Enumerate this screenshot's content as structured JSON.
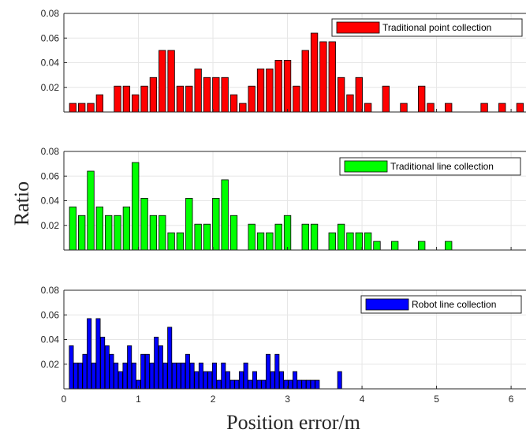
{
  "chart_data": {
    "type": "bar",
    "xlabel": "Position error/m",
    "ylabel": "Ratio",
    "xlim": [
      0,
      6.2
    ],
    "ylim": [
      0,
      0.08
    ],
    "xticks": [
      "0",
      "1",
      "2",
      "3",
      "4",
      "5",
      "6"
    ],
    "yticks": [
      "0.02",
      "0.04",
      "0.06",
      "0.08"
    ],
    "bin_width": 0.1,
    "grid": true,
    "legend_position": "top-right",
    "panels": [
      {
        "name": "Traditional point collection",
        "color": "#ff0000",
        "x": [
          0.12,
          0.24,
          0.36,
          0.48,
          0.72,
          0.84,
          0.96,
          1.08,
          1.2,
          1.32,
          1.44,
          1.56,
          1.68,
          1.8,
          1.92,
          2.04,
          2.16,
          2.28,
          2.4,
          2.52,
          2.64,
          2.76,
          2.88,
          3.0,
          3.12,
          3.24,
          3.36,
          3.48,
          3.6,
          3.72,
          3.84,
          3.96,
          4.08,
          4.32,
          4.56,
          4.8,
          4.92,
          5.16,
          5.64,
          5.88,
          6.12
        ],
        "values": [
          0.007,
          0.007,
          0.007,
          0.014,
          0.021,
          0.021,
          0.014,
          0.021,
          0.028,
          0.05,
          0.05,
          0.021,
          0.021,
          0.035,
          0.028,
          0.028,
          0.028,
          0.014,
          0.007,
          0.021,
          0.035,
          0.035,
          0.042,
          0.042,
          0.021,
          0.05,
          0.064,
          0.057,
          0.057,
          0.028,
          0.014,
          0.028,
          0.007,
          0.021,
          0.007,
          0.021,
          0.007,
          0.007,
          0.007,
          0.007,
          0.007
        ]
      },
      {
        "name": "Traditional line collection",
        "color": "#00ff00",
        "x": [
          0.12,
          0.24,
          0.36,
          0.48,
          0.6,
          0.72,
          0.84,
          0.96,
          1.08,
          1.2,
          1.32,
          1.44,
          1.56,
          1.68,
          1.8,
          1.92,
          2.04,
          2.16,
          2.28,
          2.52,
          2.64,
          2.76,
          2.88,
          3.0,
          3.24,
          3.36,
          3.6,
          3.72,
          3.84,
          3.96,
          4.08,
          4.2,
          4.44,
          4.8,
          5.16
        ],
        "values": [
          0.035,
          0.028,
          0.064,
          0.035,
          0.028,
          0.028,
          0.035,
          0.071,
          0.042,
          0.028,
          0.028,
          0.014,
          0.014,
          0.042,
          0.021,
          0.021,
          0.042,
          0.057,
          0.028,
          0.021,
          0.014,
          0.014,
          0.021,
          0.028,
          0.021,
          0.021,
          0.014,
          0.021,
          0.014,
          0.014,
          0.014,
          0.007,
          0.007,
          0.007,
          0.007
        ]
      },
      {
        "name": "Robot line collection",
        "color": "#0000ff",
        "x": [
          0.1,
          0.16,
          0.22,
          0.28,
          0.34,
          0.4,
          0.46,
          0.52,
          0.58,
          0.64,
          0.7,
          0.76,
          0.82,
          0.88,
          0.94,
          1.0,
          1.06,
          1.12,
          1.18,
          1.24,
          1.3,
          1.36,
          1.42,
          1.48,
          1.54,
          1.6,
          1.66,
          1.72,
          1.78,
          1.84,
          1.9,
          1.96,
          2.02,
          2.08,
          2.14,
          2.2,
          2.26,
          2.32,
          2.38,
          2.44,
          2.5,
          2.56,
          2.62,
          2.68,
          2.74,
          2.8,
          2.86,
          2.92,
          2.98,
          3.04,
          3.1,
          3.16,
          3.22,
          3.28,
          3.34,
          3.4,
          3.7
        ],
        "values": [
          0.035,
          0.021,
          0.021,
          0.028,
          0.057,
          0.021,
          0.057,
          0.042,
          0.035,
          0.028,
          0.021,
          0.014,
          0.021,
          0.035,
          0.021,
          0.007,
          0.028,
          0.028,
          0.021,
          0.042,
          0.035,
          0.021,
          0.05,
          0.021,
          0.021,
          0.021,
          0.028,
          0.021,
          0.014,
          0.021,
          0.014,
          0.014,
          0.021,
          0.007,
          0.021,
          0.014,
          0.007,
          0.007,
          0.014,
          0.021,
          0.007,
          0.014,
          0.007,
          0.007,
          0.028,
          0.014,
          0.028,
          0.014,
          0.007,
          0.007,
          0.014,
          0.007,
          0.007,
          0.007,
          0.007,
          0.007,
          0.014
        ]
      }
    ]
  }
}
